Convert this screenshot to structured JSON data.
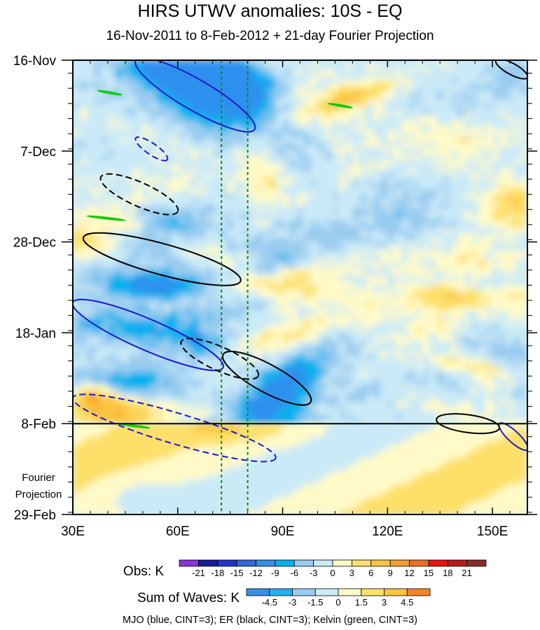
{
  "chart_data": {
    "type": "heatmap",
    "title": "HIRS UTWV anomalies: 10S - EQ",
    "subtitle": "16-Nov-2011 to 8-Feb-2012 + 21-day Fourier Projection",
    "x_axis": {
      "range_deg_east": [
        30,
        160
      ],
      "ticks": [
        {
          "value": 30,
          "label": "30E"
        },
        {
          "value": 60,
          "label": "60E"
        },
        {
          "value": 90,
          "label": "90E"
        },
        {
          "value": 120,
          "label": "120E"
        },
        {
          "value": 150,
          "label": "150E"
        }
      ]
    },
    "y_axis": {
      "direction": "time increasing downward",
      "range_days": [
        0,
        105
      ],
      "ticks": [
        {
          "day": 0,
          "label": "16-Nov"
        },
        {
          "day": 21,
          "label": "7-Dec"
        },
        {
          "day": 42,
          "label": "28-Dec"
        },
        {
          "day": 63,
          "label": "18-Jan"
        },
        {
          "day": 84,
          "label": "8-Feb"
        },
        {
          "day": 105,
          "label": "29-Feb"
        }
      ]
    },
    "forecast_start_day": 84,
    "fourier_label": [
      "Fourier",
      "Projection"
    ],
    "reference_lines_deg_east": [
      72.5,
      80
    ],
    "obs_colorbar": {
      "title": "Obs: K",
      "levels": [
        "-21",
        "-18",
        "-15",
        "-12",
        "-9",
        "-6",
        "-3",
        "0",
        "3",
        "6",
        "9",
        "12",
        "15",
        "18",
        "21"
      ],
      "colors": [
        "#8833dd",
        "#1a1aa0",
        "#2233cc",
        "#3366dd",
        "#2f90ee",
        "#00b2ee",
        "#99ccf0",
        "#cbeaf7",
        "#fffac8",
        "#fde06a",
        "#fcc540",
        "#f89d2c",
        "#f07020",
        "#ee1111",
        "#bb1a1a",
        "#8c2a2a"
      ]
    },
    "waves_colorbar": {
      "title": "Sum of Waves: K",
      "levels": [
        "-4.5",
        "-3",
        "-1.5",
        "0",
        "1.5",
        "3",
        "4.5"
      ],
      "colors": [
        "#3a8ee8",
        "#25b0ee",
        "#99ccf0",
        "#cbeaf7",
        "#fffac8",
        "#fde06a",
        "#fcc540",
        "#f4842a"
      ]
    },
    "contours": [
      {
        "wave": "MJO",
        "color": "#1a1acc",
        "sign": "positive",
        "t_range": [
          0,
          16
        ],
        "lon_range": [
          48,
          82
        ]
      },
      {
        "wave": "MJO",
        "color": "#1a1acc",
        "sign": "positive",
        "t_range": [
          56,
          71
        ],
        "lon_range": [
          30,
          73
        ]
      },
      {
        "wave": "MJO",
        "color": "#1a1acc",
        "sign": "negative",
        "t_range": [
          78,
          92
        ],
        "lon_range": [
          30,
          88
        ]
      },
      {
        "wave": "MJO",
        "color": "#1a1acc",
        "sign": "positive",
        "t_range": [
          84,
          90
        ],
        "lon_range": [
          152,
          160
        ]
      },
      {
        "wave": "MJO",
        "color": "#1a1acc",
        "sign": "negative",
        "t_range": [
          18,
          23
        ],
        "lon_range": [
          48,
          57
        ]
      },
      {
        "wave": "ER",
        "color": "#000000",
        "sign": "positive",
        "t_range": [
          41,
          51
        ],
        "lon_range": [
          33,
          78
        ]
      },
      {
        "wave": "ER",
        "color": "#000000",
        "sign": "negative",
        "t_range": [
          27,
          35
        ],
        "lon_range": [
          38,
          60
        ]
      },
      {
        "wave": "ER",
        "color": "#000000",
        "sign": "negative",
        "t_range": [
          65,
          73
        ],
        "lon_range": [
          61,
          83
        ]
      },
      {
        "wave": "ER",
        "color": "#000000",
        "sign": "positive",
        "t_range": [
          68,
          79
        ],
        "lon_range": [
          73,
          98
        ]
      },
      {
        "wave": "ER",
        "color": "#000000",
        "sign": "positive",
        "t_range": [
          0,
          4
        ],
        "lon_range": [
          151,
          160
        ]
      },
      {
        "wave": "ER",
        "color": "#000000",
        "sign": "positive",
        "t_range": [
          83,
          85
        ],
        "lon_range": [
          134,
          152
        ]
      },
      {
        "wave": "Kelvin",
        "color": "#11cc11",
        "sign": "positive",
        "t_range": [
          7,
          8
        ],
        "lon_range": [
          37,
          44
        ]
      },
      {
        "wave": "Kelvin",
        "color": "#11cc11",
        "sign": "positive",
        "t_range": [
          10,
          11
        ],
        "lon_range": [
          103,
          110
        ]
      },
      {
        "wave": "Kelvin",
        "color": "#11cc11",
        "sign": "positive",
        "t_range": [
          36,
          37
        ],
        "lon_range": [
          34,
          45
        ]
      },
      {
        "wave": "Kelvin",
        "color": "#11cc11",
        "sign": "positive",
        "t_range": [
          84,
          85
        ],
        "lon_range": [
          43,
          52
        ]
      }
    ],
    "contour_legend": "MJO (blue, CINT=3); ER (black, CINT=3); Kelvin (green, CINT=3)"
  }
}
